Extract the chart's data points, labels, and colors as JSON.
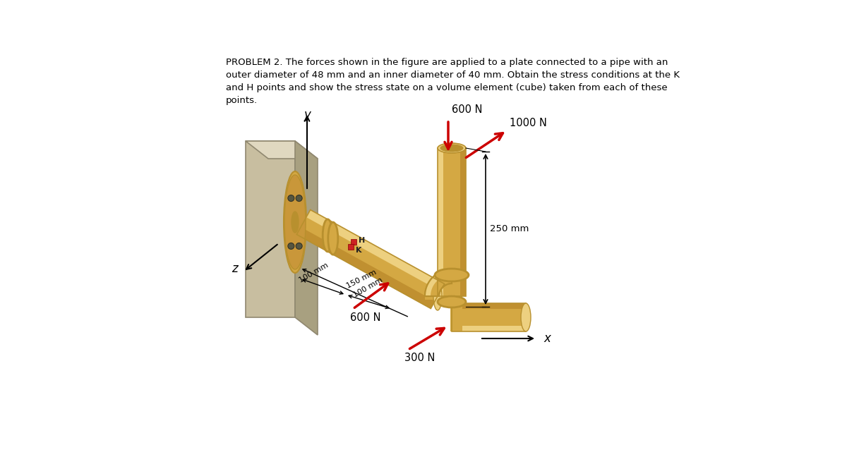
{
  "background_color": "#ffffff",
  "text_color": "#000000",
  "pipe_color": "#D4A843",
  "pipe_color2": "#C9973A",
  "pipe_dark": "#B8902E",
  "pipe_light": "#EDD080",
  "pipe_shadow": "#C09030",
  "wall_face": "#C8BEA0",
  "wall_top": "#E0D8C0",
  "wall_side": "#A8A080",
  "wall_edge": "#908870",
  "point_color": "#CC2222",
  "arrow_red": "#CC0000",
  "problem_text_line1": "PROBLEM 2. The forces shown in the figure are applied to a plate connected to a pipe with an",
  "problem_text_line2": "outer diameter of 48 mm and an inner diameter of 40 mm. Obtain the stress conditions at the K",
  "problem_text_line3": "and H points and show the stress state on a volume element (cube) taken from each of these",
  "problem_text_line4": "points.",
  "label_600N_top": "600 N",
  "label_1000N": "1000 N",
  "label_250mm": "250 mm",
  "label_600N_bot": "600 N",
  "label_300N": "300 N",
  "label_100mm_1": "100 mm",
  "label_100mm_2": "100 mm",
  "label_150mm": "150 mm",
  "label_H": "H",
  "label_K": "K",
  "label_x": "x",
  "label_y": "y",
  "label_z": "z"
}
